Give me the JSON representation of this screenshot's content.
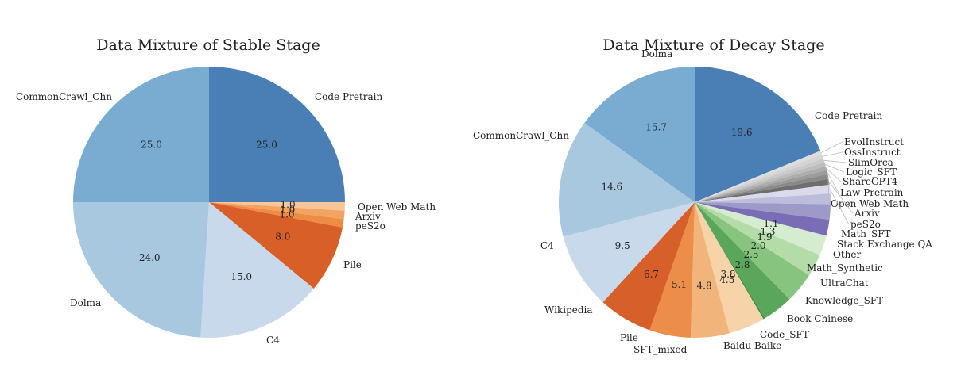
{
  "chart_data": [
    {
      "type": "pie",
      "title": "Data Mixture of Stable Stage",
      "start_angle_deg": 90,
      "direction": "clockwise",
      "slices": [
        {
          "label": "Code Pretrain",
          "value": 25.0,
          "pct_label": "25.0",
          "color": "#4a7fb5"
        },
        {
          "label": "Open Web Math",
          "value": 1.0,
          "pct_label": "1.0",
          "color": "#f7c79a"
        },
        {
          "label": "Arxiv",
          "value": 1.0,
          "pct_label": "1.0",
          "color": "#f3a461"
        },
        {
          "label": "peS2o",
          "value": 1.0,
          "pct_label": "1.0",
          "color": "#ef8c43"
        },
        {
          "label": "Pile",
          "value": 8.0,
          "pct_label": "8.0",
          "color": "#d85f28"
        },
        {
          "label": "C4",
          "value": 15.0,
          "pct_label": "15.0",
          "color": "#c9d9ec"
        },
        {
          "label": "Dolma",
          "value": 24.0,
          "pct_label": "24.0",
          "color": "#a8c8e0"
        },
        {
          "label": "CommonCrawl_Chn",
          "value": 25.0,
          "pct_label": "25.0",
          "color": "#7aacd2"
        }
      ]
    },
    {
      "type": "pie",
      "title": "Data Mixture of Decay Stage",
      "start_angle_deg": 90,
      "direction": "clockwise",
      "slices": [
        {
          "label": "Code Pretrain",
          "value": 19.6,
          "pct_label": "19.6",
          "color": "#4a7fb5"
        },
        {
          "label": "EvolInstruct",
          "value": 0.5,
          "pct_label": "",
          "color": "#dddddd"
        },
        {
          "label": "OssInstruct",
          "value": 0.5,
          "pct_label": "",
          "color": "#d4d4d4"
        },
        {
          "label": "SlimOrca",
          "value": 0.5,
          "pct_label": "",
          "color": "#cacaca"
        },
        {
          "label": "Logic_SFT",
          "value": 0.5,
          "pct_label": "",
          "color": "#bdbdbd"
        },
        {
          "label": "ShareGPT4",
          "value": 0.5,
          "pct_label": "",
          "color": "#adadad"
        },
        {
          "label": "Law Pretrain",
          "value": 0.5,
          "pct_label": "",
          "color": "#9c9c9c"
        },
        {
          "label": "Open Web Math",
          "value": 0.6,
          "pct_label": "",
          "color": "#8a8a8a"
        },
        {
          "label": "Arxiv",
          "value": 0.7,
          "pct_label": "",
          "color": "#6e6e6e"
        },
        {
          "label": "peS2o",
          "value": 1.1,
          "pct_label": "1.1",
          "color": "#dadaeb"
        },
        {
          "label": "Math_SFT",
          "value": 1.3,
          "pct_label": "1.3",
          "color": "#bcbddc"
        },
        {
          "label": "Stack Exchange QA",
          "value": 1.9,
          "pct_label": "1.9",
          "color": "#9e9ac8"
        },
        {
          "label": "Other",
          "value": 2.0,
          "pct_label": "2.0",
          "color": "#7b6db5"
        },
        {
          "label": "Math_Synthetic",
          "value": 2.5,
          "pct_label": "2.5",
          "color": "#d5ecd0"
        },
        {
          "label": "UltraChat",
          "value": 2.8,
          "pct_label": "2.8",
          "color": "#b3dca9"
        },
        {
          "label": "Knowledge_SFT",
          "value": 3.8,
          "pct_label": "3.8",
          "color": "#86c47f"
        },
        {
          "label": "Book Chinese",
          "value": 3.8,
          "pct_label": "",
          "color": "#5aa65a"
        },
        {
          "label": "Code_SFT",
          "value": 0.2,
          "pct_label": "",
          "color": "#3f8f48"
        },
        {
          "label": "Baidu Baike",
          "value": 4.5,
          "pct_label": "4.5",
          "color": "#f6d3a8"
        },
        {
          "label": "SFT_mixed",
          "value": 4.8,
          "pct_label": "4.8",
          "color": "#f1b47a"
        },
        {
          "label": "Pile",
          "value": 5.1,
          "pct_label": "5.1",
          "color": "#ec8d4a"
        },
        {
          "label": "Wikipedia",
          "value": 6.7,
          "pct_label": "6.7",
          "color": "#d65f2a"
        },
        {
          "label": "C4",
          "value": 9.5,
          "pct_label": "9.5",
          "color": "#c9d9ec"
        },
        {
          "label": "CommonCrawl_Chn",
          "value": 14.6,
          "pct_label": "14.6",
          "color": "#a8c8e0"
        },
        {
          "label": "Dolma",
          "value": 15.7,
          "pct_label": "15.7",
          "color": "#7aacd2"
        }
      ]
    }
  ]
}
